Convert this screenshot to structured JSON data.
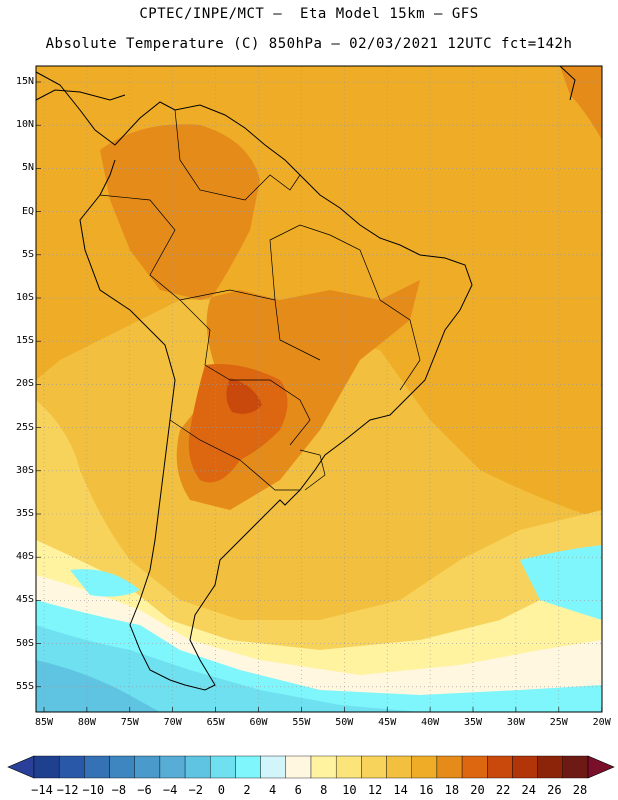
{
  "header": {
    "title_line1": "CPTEC/INPE/MCT –  Eta Model 15km – GFS",
    "title_line2": "Absolute Temperature (C) 850hPa – 02/03/2021 12UTC fct=142h"
  },
  "map": {
    "lat_labels": [
      "15N",
      "10N",
      "5N",
      "EQ",
      "5S",
      "10S",
      "15S",
      "20S",
      "25S",
      "30S",
      "35S",
      "40S",
      "45S",
      "50S",
      "55S"
    ],
    "lon_labels": [
      "85W",
      "80W",
      "75W",
      "70W",
      "65W",
      "60W",
      "55W",
      "50W",
      "45W",
      "40W",
      "35W",
      "30W",
      "25W",
      "20W"
    ],
    "grid": "dotted"
  },
  "colorbar": {
    "labels": [
      "-14",
      "-12",
      "-10",
      "-8",
      "-6",
      "-4",
      "-2",
      "0",
      "2",
      "4",
      "6",
      "8",
      "10",
      "12",
      "14",
      "16",
      "18",
      "20",
      "22",
      "24",
      "26",
      "28"
    ],
    "colors": [
      "#1f3f8f",
      "#2a58a8",
      "#3471b5",
      "#3d86c0",
      "#4a9acb",
      "#58add7",
      "#5fc3e2",
      "#6ee0f0",
      "#7ff6fb",
      "#d2f4fb",
      "#fff7df",
      "#fff3a0",
      "#fbe47a",
      "#f7d35c",
      "#f2c03e",
      "#efac26",
      "#e58b1a",
      "#dd6710",
      "#c9480c",
      "#b23409",
      "#8c2409",
      "#6e1a14"
    ],
    "under_color": "#2a3f9a",
    "over_color": "#7a0f2a"
  }
}
